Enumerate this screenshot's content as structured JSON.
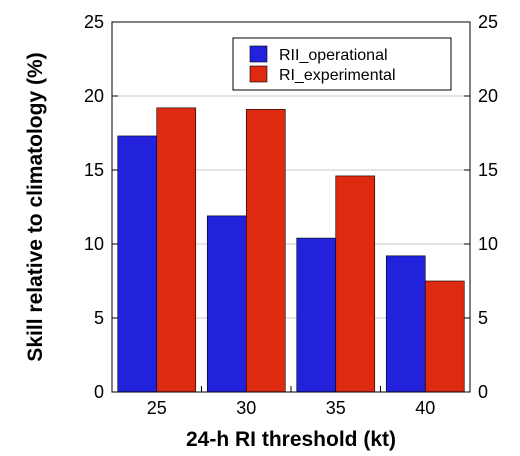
{
  "chart_data": {
    "type": "bar",
    "title": "",
    "xlabel": "24-h RI threshold (kt)",
    "ylabel": "Skill relative to climatology (%)",
    "categories": [
      "25",
      "30",
      "35",
      "40"
    ],
    "series": [
      {
        "name": "RII_operational",
        "color": "#2222dd",
        "values": [
          17.3,
          11.9,
          10.4,
          9.2
        ]
      },
      {
        "name": "RI_experimental",
        "color": "#dd2a10",
        "values": [
          19.2,
          19.1,
          14.6,
          7.5
        ]
      }
    ],
    "ylim": [
      0,
      25
    ],
    "yticks": [
      "0",
      "5",
      "10",
      "15",
      "20",
      "25"
    ],
    "right_axis_mirrored": true,
    "grid": "horizontal",
    "legend_position": "top-right"
  }
}
